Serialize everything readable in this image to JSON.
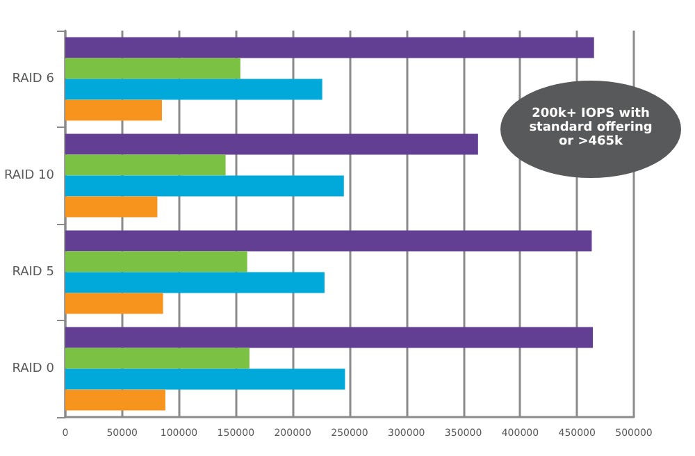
{
  "chart_data": {
    "type": "bar",
    "orientation": "horizontal",
    "categories": [
      "RAID 6",
      "RAID 10",
      "RAID 5",
      "RAID 0"
    ],
    "series": [
      {
        "color": "#633f94",
        "values": [
          465000,
          363000,
          463000,
          464000
        ]
      },
      {
        "color": "#7bc143",
        "values": [
          154000,
          141000,
          160000,
          162000
        ]
      },
      {
        "color": "#00a9d9",
        "values": [
          226000,
          245000,
          228000,
          246000
        ]
      },
      {
        "color": "#f7941d",
        "values": [
          85000,
          81000,
          86000,
          88000
        ]
      }
    ],
    "xlim": [
      0,
      500000
    ],
    "xticks": [
      0,
      50000,
      100000,
      150000,
      200000,
      250000,
      300000,
      350000,
      400000,
      450000,
      500000
    ],
    "grid": "x",
    "annotations": [
      "200k+ IOPS with standard offering or >465k"
    ]
  }
}
